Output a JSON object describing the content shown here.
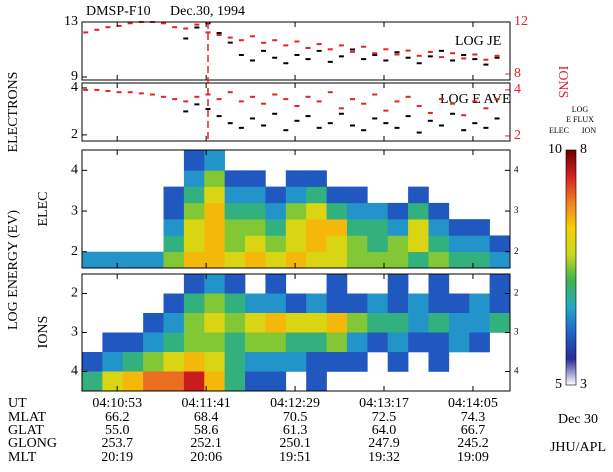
{
  "header": {
    "satellite": "DMSP-F10",
    "date": "Dec.30, 1994"
  },
  "labels": {
    "energy": "LOG ENERGY (EV)"
  },
  "chart_data": [
    {
      "type": "scatter",
      "annotation": "LOG JE",
      "ylabel": "ELECTRONS",
      "y2label": "IONS",
      "x": [
        15036,
        15042,
        15048,
        15054,
        15060,
        15066,
        15072,
        15078,
        15084,
        15090,
        15096,
        15102,
        15108,
        15114,
        15120,
        15126,
        15132,
        15138,
        15144,
        15150,
        15156,
        15162,
        15168,
        15174,
        15180,
        15186,
        15192,
        15198,
        15204,
        15210,
        15216,
        15222,
        15228,
        15234,
        15240,
        15246,
        15252,
        15258
      ],
      "xlim": [
        15034,
        15265
      ],
      "ylim": [
        8.78,
        13
      ],
      "yticks": [
        9,
        13
      ],
      "y2lim": [
        7.54,
        12
      ],
      "y2ticks": [
        8,
        12
      ],
      "vline": 15102,
      "vline_color": "#e8202a",
      "series": [
        {
          "color": "#000000",
          "values": [
            null,
            null,
            null,
            null,
            null,
            null,
            null,
            null,
            null,
            11.8,
            12.6,
            12.9,
            12.2,
            11.5,
            10.6,
            10.2,
            10.9,
            10.4,
            10.0,
            10.6,
            10.3,
            10.9,
            10.1,
            10.5,
            11.0,
            10.3,
            10.6,
            10.2,
            10.8,
            10.4,
            10.0,
            10.5,
            10.9,
            10.2,
            10.6,
            10.3,
            9.9,
            10.4
          ]
        },
        {
          "color": "#e8202a",
          "axis": "y2",
          "values": [
            11.2,
            11.4,
            11.6,
            11.7,
            11.9,
            12.0,
            12.0,
            11.9,
            11.6,
            11.5,
            11.8,
            11.2,
            11.0,
            10.8,
            10.6,
            10.9,
            10.4,
            10.6,
            10.2,
            10.5,
            10.0,
            10.3,
            9.9,
            10.2,
            9.7,
            10.1,
            9.6,
            9.9,
            9.5,
            9.8,
            9.4,
            9.7,
            9.3,
            9.6,
            9.2,
            9.5,
            9.1,
            9.4
          ]
        }
      ]
    },
    {
      "type": "scatter",
      "annotation": "LOG E AVE",
      "x": [
        15036,
        15042,
        15048,
        15054,
        15060,
        15066,
        15072,
        15078,
        15084,
        15090,
        15096,
        15102,
        15108,
        15114,
        15120,
        15126,
        15132,
        15138,
        15144,
        15150,
        15156,
        15162,
        15168,
        15174,
        15180,
        15186,
        15192,
        15198,
        15204,
        15210,
        15216,
        15222,
        15228,
        15234,
        15240,
        15246,
        15252,
        15258
      ],
      "xlim": [
        15034,
        15265
      ],
      "ylim": [
        1.74,
        4.21
      ],
      "yticks": [
        2,
        4
      ],
      "y2lim": [
        1.78,
        4.3
      ],
      "y2ticks": [
        2,
        4
      ],
      "series": [
        {
          "color": "#000000",
          "values": [
            null,
            null,
            null,
            null,
            null,
            null,
            null,
            null,
            null,
            3.0,
            3.3,
            3.1,
            2.8,
            2.5,
            2.3,
            2.7,
            2.4,
            2.9,
            2.2,
            2.6,
            2.8,
            2.3,
            2.5,
            2.9,
            2.4,
            2.2,
            2.7,
            2.5,
            2.3,
            2.8,
            2.1,
            2.6,
            2.4,
            2.9,
            2.2,
            2.5,
            2.3,
            2.7
          ]
        },
        {
          "color": "#e8202a",
          "axis": "y2",
          "values": [
            4.0,
            4.0,
            3.95,
            3.9,
            3.9,
            3.85,
            3.8,
            3.7,
            3.6,
            3.5,
            3.7,
            3.8,
            3.6,
            3.9,
            3.5,
            3.7,
            3.4,
            3.8,
            3.6,
            3.3,
            3.7,
            3.5,
            3.9,
            3.2,
            3.6,
            3.4,
            3.8,
            3.1,
            3.5,
            3.7,
            3.3,
            3.0,
            3.6,
            3.4,
            2.9,
            3.5,
            3.2,
            3.6
          ]
        }
      ]
    },
    {
      "type": "heatmap",
      "ylabel": "ELEC",
      "xbins": [
        15034,
        15045,
        15056,
        15067,
        15078,
        15089,
        15100,
        15111,
        15122,
        15133,
        15144,
        15155,
        15166,
        15177,
        15188,
        15199,
        15210,
        15221,
        15232,
        15243,
        15254,
        15265
      ],
      "ybins": [
        1.6,
        2.0,
        2.4,
        2.8,
        3.2,
        3.6,
        4.0,
        4.5
      ],
      "xlim": [
        15034,
        15265
      ],
      "ylim": [
        1.6,
        4.5
      ],
      "yticks": [
        2,
        3,
        4
      ],
      "zlim": [
        5,
        10
      ],
      "values": [
        [
          6.5,
          6.5,
          6.5,
          6.5,
          7.5,
          8.5,
          8.5,
          8.0,
          8.5,
          8.0,
          8.5,
          8.0,
          8.0,
          7.5,
          7.5,
          7.5,
          7.0,
          7.5,
          7.0,
          7.0,
          6.5
        ],
        [
          null,
          null,
          null,
          null,
          7.0,
          8.0,
          8.5,
          7.5,
          8.0,
          7.5,
          8.0,
          8.5,
          8.0,
          7.5,
          7.0,
          7.5,
          8.0,
          7.0,
          6.5,
          6.5,
          6.0
        ],
        [
          null,
          null,
          null,
          null,
          6.5,
          8.0,
          8.5,
          7.5,
          7.5,
          7.0,
          8.0,
          8.5,
          8.5,
          7.0,
          7.0,
          6.5,
          8.0,
          6.5,
          6.0,
          6.0,
          null
        ],
        [
          null,
          null,
          null,
          null,
          6.0,
          7.5,
          8.5,
          7.0,
          7.0,
          6.5,
          7.5,
          8.0,
          7.0,
          6.5,
          6.5,
          6.0,
          7.0,
          6.0,
          null,
          null,
          null
        ],
        [
          null,
          null,
          null,
          null,
          6.0,
          7.0,
          8.0,
          6.5,
          6.5,
          6.0,
          6.5,
          7.0,
          6.0,
          6.0,
          null,
          null,
          6.0,
          null,
          null,
          null,
          null
        ],
        [
          null,
          null,
          null,
          null,
          null,
          6.5,
          7.5,
          6.0,
          6.0,
          null,
          6.0,
          6.0,
          null,
          null,
          null,
          null,
          null,
          null,
          null,
          null,
          null
        ],
        [
          null,
          null,
          null,
          null,
          null,
          6.0,
          6.5,
          null,
          null,
          null,
          null,
          null,
          null,
          null,
          null,
          null,
          null,
          null,
          null,
          null,
          null
        ]
      ]
    },
    {
      "type": "heatmap",
      "ylabel": "IONS",
      "xbins": [
        15034,
        15045,
        15056,
        15067,
        15078,
        15089,
        15100,
        15111,
        15122,
        15133,
        15144,
        15155,
        15166,
        15177,
        15188,
        15199,
        15210,
        15221,
        15232,
        15243,
        15254,
        15265
      ],
      "ybins": [
        1.5,
        2.0,
        2.5,
        3.0,
        3.5,
        4.0,
        4.5
      ],
      "xlim": [
        15034,
        15265
      ],
      "ylim": [
        4.5,
        1.5
      ],
      "yticks": [
        2,
        3,
        4
      ],
      "zlim": [
        3,
        8
      ],
      "xticks": [
        {
          "value": 15053,
          "label": "04:10:53"
        },
        {
          "value": 15101,
          "label": "04:11:41"
        },
        {
          "value": 15149,
          "label": "04:12:29"
        },
        {
          "value": 15197,
          "label": "04:13:17"
        },
        {
          "value": 15245,
          "label": "04:14:05"
        }
      ],
      "values": [
        [
          null,
          null,
          null,
          null,
          null,
          4.0,
          4.5,
          4.0,
          null,
          4.0,
          null,
          null,
          4.0,
          null,
          null,
          4.0,
          null,
          4.0,
          null,
          null,
          4.0
        ],
        [
          null,
          null,
          null,
          null,
          4.0,
          5.0,
          5.5,
          5.0,
          4.5,
          4.5,
          4.0,
          4.5,
          4.0,
          4.0,
          4.5,
          4.0,
          4.5,
          4.0,
          4.0,
          4.5,
          4.0
        ],
        [
          null,
          null,
          null,
          4.0,
          4.5,
          5.5,
          6.0,
          5.5,
          6.0,
          6.5,
          6.0,
          6.0,
          6.5,
          5.5,
          5.0,
          5.0,
          4.5,
          5.0,
          4.5,
          4.5,
          5.0
        ],
        [
          null,
          4.0,
          4.0,
          4.5,
          5.0,
          5.5,
          5.5,
          5.0,
          5.5,
          5.5,
          5.0,
          5.0,
          5.5,
          4.5,
          4.0,
          4.5,
          4.0,
          4.0,
          4.5,
          4.0,
          null
        ],
        [
          4.0,
          4.5,
          5.0,
          5.5,
          6.0,
          6.5,
          6.0,
          5.0,
          4.5,
          4.5,
          4.5,
          4.0,
          4.0,
          4.0,
          null,
          4.0,
          null,
          4.0,
          null,
          null,
          null
        ],
        [
          5.0,
          6.0,
          6.5,
          7.0,
          7.0,
          7.5,
          6.5,
          5.0,
          4.0,
          4.0,
          null,
          4.0,
          null,
          null,
          null,
          null,
          null,
          null,
          null,
          null,
          null
        ]
      ]
    }
  ],
  "colorbar": {
    "title": "LOG",
    "subtitle": "E FLUX",
    "labels": [
      "ELEC",
      "ION"
    ],
    "colormap": [
      "#ffffff",
      "#2a2a9a",
      "#1f63c8",
      "#25a9c9",
      "#3bb54a",
      "#c8d820",
      "#f5d000",
      "#f08020",
      "#d42020",
      "#6a0000"
    ]
  },
  "ephemeris": {
    "row_labels": [
      "UT",
      "MLAT",
      "GLAT",
      "GLONG",
      "MLT"
    ],
    "rows": [
      [
        "66.2",
        "68.4",
        "70.5",
        "72.5",
        "74.3"
      ],
      [
        "55.0",
        "58.6",
        "61.3",
        "64.0",
        "66.7"
      ],
      [
        "253.7",
        "252.1",
        "250.1",
        "247.9",
        "245.2"
      ],
      [
        "20:19",
        "20:06",
        "19:51",
        "19:32",
        "19:09"
      ]
    ]
  },
  "footer": {
    "date": "Dec 30",
    "credit": "JHU/APL"
  }
}
